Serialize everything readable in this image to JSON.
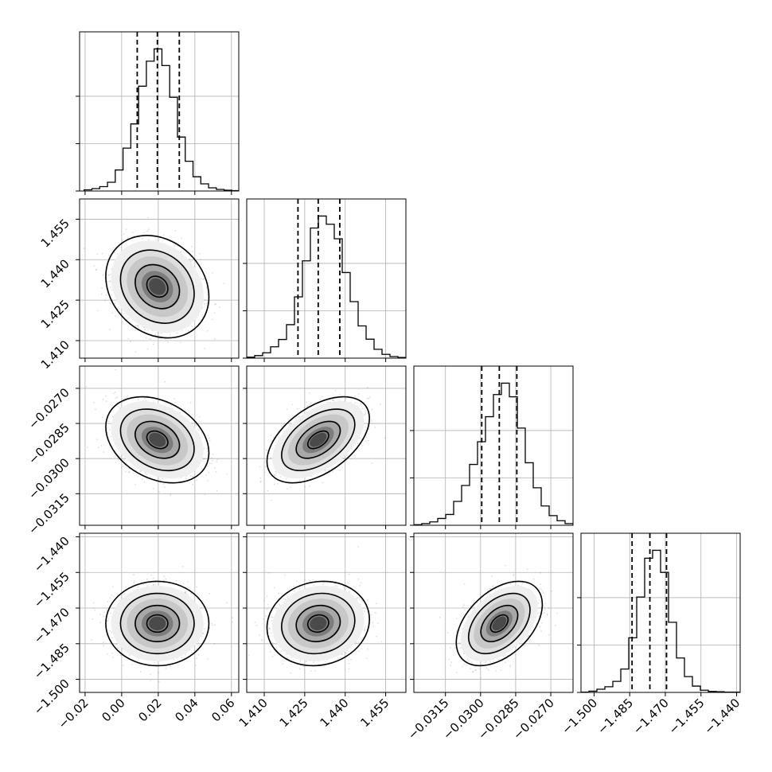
{
  "chart_data": {
    "type": "corner",
    "params": [
      {
        "range": [
          -0.023,
          0.064
        ],
        "ticks": [
          -0.02,
          0.0,
          0.02,
          0.04,
          0.06
        ],
        "tick_labels": [
          "−0.02",
          "0.00",
          "0.02",
          "0.04",
          "0.06"
        ],
        "quantiles": [
          0.0085,
          0.0195,
          0.0315
        ]
      },
      {
        "range": [
          1.4035,
          1.4625
        ],
        "ticks": [
          1.41,
          1.425,
          1.44,
          1.455
        ],
        "tick_labels": [
          "1.410",
          "1.425",
          "1.440",
          "1.455"
        ],
        "quantiles": [
          1.4225,
          1.43,
          1.438
        ]
      },
      {
        "range": [
          -0.03285,
          -0.02605
        ],
        "ticks": [
          -0.0315,
          -0.03,
          -0.0285,
          -0.027
        ],
        "tick_labels": [
          "−0.0315",
          "−0.0300",
          "−0.0285",
          "−0.0270"
        ],
        "quantiles": [
          -0.02995,
          -0.0292,
          -0.02845
        ]
      },
      {
        "range": [
          -1.5055,
          -1.4385
        ],
        "ticks": [
          -1.5,
          -1.485,
          -1.47,
          -1.455,
          -1.44
        ],
        "tick_labels": [
          "−1.500",
          "−1.485",
          "−1.470",
          "−1.455",
          "−1.440"
        ],
        "quantiles": [
          -1.484,
          -1.4765,
          -1.4695
        ]
      }
    ],
    "histograms": [
      {
        "bin_start": -0.0205,
        "bin_width": 0.00425,
        "counts": [
          3,
          6,
          11,
          22,
          53,
          108,
          169,
          264,
          327,
          358,
          316,
          236,
          136,
          75,
          36,
          18,
          8,
          4,
          2,
          1
        ]
      },
      {
        "bin_start": 1.4035,
        "bin_width": 0.00295,
        "counts": [
          3,
          8,
          17,
          36,
          59,
          106,
          194,
          308,
          412,
          450,
          424,
          378,
          271,
          179,
          102,
          60,
          28,
          12,
          5,
          2
        ]
      },
      {
        "bin_start": -0.03285,
        "bin_width": 0.00034,
        "counts": [
          1,
          3,
          6,
          12,
          19,
          42,
          70,
          107,
          147,
          191,
          230,
          250,
          226,
          171,
          110,
          66,
          34,
          17,
          8,
          3
        ]
      },
      {
        "bin_start": -1.5055,
        "bin_width": 0.00335,
        "counts": [
          1,
          4,
          10,
          18,
          35,
          74,
          173,
          302,
          425,
          450,
          380,
          222,
          109,
          50,
          20,
          7,
          3,
          2,
          1,
          1
        ]
      }
    ],
    "correlations": {
      "1-0": -0.2,
      "2-0": -0.3,
      "2-1": 0.5,
      "3-0": 0.0,
      "3-1": 0.1,
      "3-2": 0.45
    },
    "grid": true
  }
}
